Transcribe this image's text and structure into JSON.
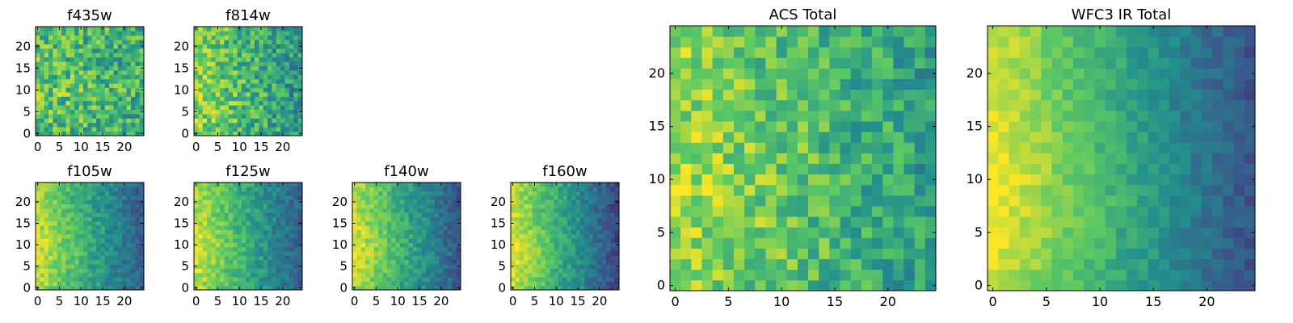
{
  "figure": {
    "colormap": "viridis",
    "colormap_stops": [
      "#440154",
      "#3b528b",
      "#21908d",
      "#5dc963",
      "#fde725"
    ]
  },
  "chart_data": [
    {
      "type": "heatmap",
      "title": "f435w",
      "grid_size": [
        25,
        25
      ],
      "xlim": [
        -0.5,
        24.5
      ],
      "ylim": [
        -0.5,
        24.5
      ],
      "xticks": [
        0,
        5,
        10,
        15,
        20
      ],
      "yticks": [
        0,
        5,
        10,
        15,
        20
      ],
      "gradient": {
        "left": 0.68,
        "right": 0.63,
        "noise": 0.22
      },
      "seed": 11,
      "origin": "lower"
    },
    {
      "type": "heatmap",
      "title": "f814w",
      "grid_size": [
        25,
        25
      ],
      "xlim": [
        -0.5,
        24.5
      ],
      "ylim": [
        -0.5,
        24.5
      ],
      "xticks": [
        0,
        5,
        10,
        15,
        20
      ],
      "yticks": [
        0,
        5,
        10,
        15,
        20
      ],
      "gradient": {
        "left": 0.78,
        "right": 0.52,
        "noise": 0.2
      },
      "seed": 23,
      "origin": "lower"
    },
    {
      "type": "heatmap",
      "title": "f105w",
      "grid_size": [
        25,
        25
      ],
      "xlim": [
        -0.5,
        24.5
      ],
      "ylim": [
        -0.5,
        24.5
      ],
      "xticks": [
        0,
        5,
        10,
        15,
        20
      ],
      "yticks": [
        0,
        5,
        10,
        15,
        20
      ],
      "gradient": {
        "left": 0.86,
        "right": 0.3,
        "noise": 0.1
      },
      "seed": 37,
      "origin": "lower"
    },
    {
      "type": "heatmap",
      "title": "f125w",
      "grid_size": [
        25,
        25
      ],
      "xlim": [
        -0.5,
        24.5
      ],
      "ylim": [
        -0.5,
        24.5
      ],
      "xticks": [
        0,
        5,
        10,
        15,
        20
      ],
      "yticks": [
        0,
        5,
        10,
        15,
        20
      ],
      "gradient": {
        "left": 0.87,
        "right": 0.3,
        "noise": 0.1
      },
      "seed": 41,
      "origin": "lower"
    },
    {
      "type": "heatmap",
      "title": "f140w",
      "grid_size": [
        25,
        25
      ],
      "xlim": [
        -0.5,
        24.5
      ],
      "ylim": [
        -0.5,
        24.5
      ],
      "xticks": [
        0,
        5,
        10,
        15,
        20
      ],
      "yticks": [
        0,
        5,
        10,
        15,
        20
      ],
      "gradient": {
        "left": 0.88,
        "right": 0.28,
        "noise": 0.1
      },
      "seed": 53,
      "origin": "lower"
    },
    {
      "type": "heatmap",
      "title": "f160w",
      "grid_size": [
        25,
        25
      ],
      "xlim": [
        -0.5,
        24.5
      ],
      "ylim": [
        -0.5,
        24.5
      ],
      "xticks": [
        0,
        5,
        10,
        15,
        20
      ],
      "yticks": [
        0,
        5,
        10,
        15,
        20
      ],
      "gradient": {
        "left": 0.9,
        "right": 0.22,
        "noise": 0.09
      },
      "seed": 67,
      "origin": "lower"
    },
    {
      "type": "heatmap",
      "title": "ACS Total",
      "grid_size": [
        25,
        25
      ],
      "xlim": [
        -0.5,
        24.5
      ],
      "ylim": [
        -0.5,
        24.5
      ],
      "xticks": [
        0,
        5,
        10,
        15,
        20
      ],
      "yticks": [
        0,
        5,
        10,
        15,
        20
      ],
      "gradient": {
        "left": 0.82,
        "right": 0.55,
        "noise": 0.17
      },
      "seed": 79,
      "origin": "lower"
    },
    {
      "type": "heatmap",
      "title": "WFC3 IR Total",
      "grid_size": [
        25,
        25
      ],
      "xlim": [
        -0.5,
        24.5
      ],
      "ylim": [
        -0.5,
        24.5
      ],
      "xticks": [
        0,
        5,
        10,
        15,
        20
      ],
      "yticks": [
        0,
        5,
        10,
        15,
        20
      ],
      "gradient": {
        "left": 0.92,
        "right": 0.26,
        "noise": 0.07
      },
      "seed": 97,
      "origin": "lower"
    }
  ]
}
